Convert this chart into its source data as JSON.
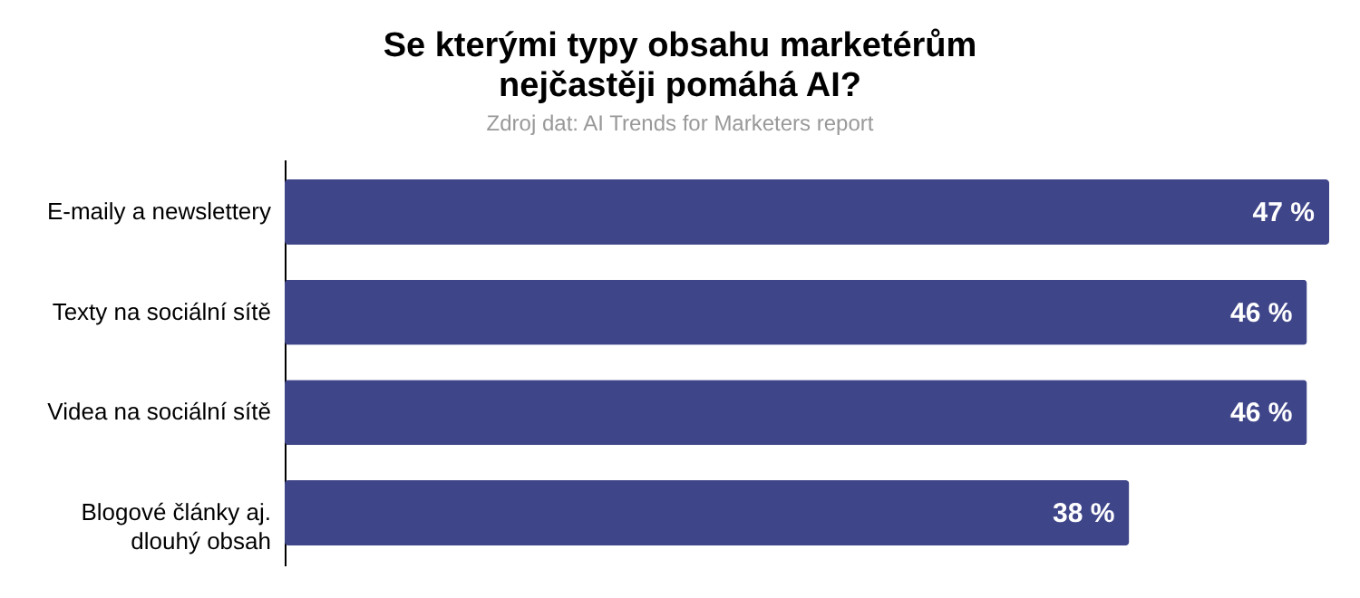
{
  "chart_data": {
    "type": "bar",
    "orientation": "horizontal",
    "title": "Se kterými typy obsahu marketérům nejčastěji pomáhá AI?",
    "subtitle": "Zdroj dat: AI Trends for Marketers report",
    "categories": [
      "E-maily a newslettery",
      "Texty na sociální sítě",
      "Videa na sociální sítě",
      "Blogové články aj. dlouhý obsah"
    ],
    "values": [
      47,
      46,
      46,
      38
    ],
    "value_labels": [
      "47 %",
      "46 %",
      "46 %",
      "38 %"
    ],
    "color": "#3f4589",
    "xlim": [
      0,
      47
    ],
    "tick_labels": "y",
    "grid": false
  }
}
